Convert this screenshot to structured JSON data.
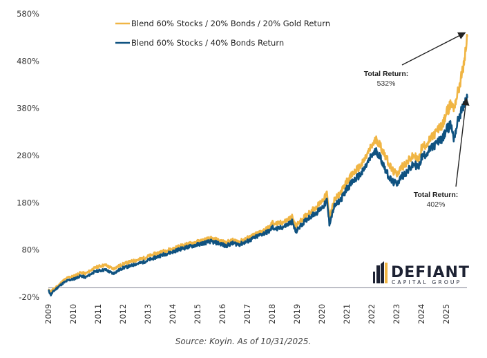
{
  "chart_data": {
    "type": "line",
    "title": "",
    "xlabel": "",
    "ylabel": "",
    "ylim": [
      -20,
      580
    ],
    "yticks": [
      "580%",
      "480%",
      "380%",
      "280%",
      "180%",
      "80%",
      "-20%"
    ],
    "ytick_values": [
      580,
      480,
      380,
      280,
      180,
      80,
      -20
    ],
    "xticks": [
      "2009",
      "2010",
      "2011",
      "2012",
      "2013",
      "2014",
      "2015",
      "2016",
      "2017",
      "2018",
      "2019",
      "2020",
      "2021",
      "2022",
      "2023",
      "2024",
      "2025"
    ],
    "xlim": [
      2009,
      2025.85
    ],
    "grid": false,
    "legend_position": "top-left",
    "series": [
      {
        "name": "Blend 60% Stocks / 20% Bonds / 20% Gold Return",
        "color": "#F0B544",
        "x": [
          2009.0,
          2009.1,
          2009.2,
          2009.4,
          2009.6,
          2009.8,
          2010.0,
          2010.3,
          2010.5,
          2010.8,
          2011.0,
          2011.3,
          2011.6,
          2011.8,
          2012.0,
          2012.3,
          2012.5,
          2012.8,
          2013.0,
          2013.3,
          2013.5,
          2013.8,
          2014.0,
          2014.3,
          2014.6,
          2014.9,
          2015.2,
          2015.5,
          2015.7,
          2016.0,
          2016.1,
          2016.4,
          2016.7,
          2017.0,
          2017.3,
          2017.6,
          2017.9,
          2018.0,
          2018.2,
          2018.5,
          2018.8,
          2018.95,
          2019.2,
          2019.5,
          2019.8,
          2020.1,
          2020.2,
          2020.3,
          2020.5,
          2020.8,
          2021.0,
          2021.3,
          2021.6,
          2021.9,
          2022.0,
          2022.2,
          2022.4,
          2022.6,
          2022.8,
          2023.0,
          2023.2,
          2023.5,
          2023.7,
          2023.9,
          2024.0,
          2024.3,
          2024.6,
          2024.9,
          2025.0,
          2025.2,
          2025.3,
          2025.5,
          2025.7,
          2025.85
        ],
        "values": [
          -5,
          -8,
          -3,
          5,
          15,
          22,
          24,
          32,
          30,
          40,
          45,
          48,
          40,
          45,
          50,
          55,
          58,
          62,
          66,
          72,
          75,
          80,
          82,
          88,
          92,
          96,
          100,
          104,
          102,
          98,
          95,
          100,
          98,
          105,
          112,
          120,
          128,
          138,
          135,
          140,
          150,
          130,
          145,
          160,
          172,
          190,
          200,
          150,
          185,
          205,
          225,
          245,
          260,
          290,
          300,
          315,
          295,
          275,
          250,
          240,
          255,
          270,
          280,
          270,
          295,
          310,
          330,
          350,
          370,
          390,
          380,
          420,
          470,
          532
        ]
      },
      {
        "name": "Blend 60% Stocks / 40% Bonds Return",
        "color": "#0F5280",
        "x": [
          2009.0,
          2009.1,
          2009.2,
          2009.4,
          2009.6,
          2009.8,
          2010.0,
          2010.3,
          2010.5,
          2010.8,
          2011.0,
          2011.3,
          2011.6,
          2011.8,
          2012.0,
          2012.3,
          2012.5,
          2012.8,
          2013.0,
          2013.3,
          2013.5,
          2013.8,
          2014.0,
          2014.3,
          2014.6,
          2014.9,
          2015.2,
          2015.5,
          2015.7,
          2016.0,
          2016.1,
          2016.4,
          2016.7,
          2017.0,
          2017.3,
          2017.6,
          2017.9,
          2018.0,
          2018.2,
          2018.5,
          2018.8,
          2018.95,
          2019.2,
          2019.5,
          2019.8,
          2020.1,
          2020.2,
          2020.3,
          2020.5,
          2020.8,
          2021.0,
          2021.3,
          2021.6,
          2021.9,
          2022.0,
          2022.2,
          2022.4,
          2022.6,
          2022.8,
          2023.0,
          2023.2,
          2023.5,
          2023.7,
          2023.9,
          2024.0,
          2024.3,
          2024.6,
          2024.9,
          2025.0,
          2025.2,
          2025.3,
          2025.5,
          2025.7,
          2025.85
        ],
        "values": [
          -5,
          -15,
          -8,
          2,
          10,
          16,
          18,
          25,
          22,
          32,
          36,
          38,
          30,
          36,
          42,
          46,
          50,
          54,
          58,
          64,
          68,
          73,
          76,
          82,
          86,
          90,
          94,
          98,
          96,
          92,
          88,
          94,
          92,
          98,
          106,
          114,
          120,
          128,
          124,
          130,
          140,
          118,
          135,
          150,
          160,
          175,
          185,
          135,
          172,
          190,
          210,
          228,
          242,
          270,
          280,
          290,
          270,
          245,
          225,
          220,
          235,
          250,
          262,
          255,
          275,
          290,
          305,
          320,
          335,
          345,
          315,
          360,
          385,
          402
        ]
      }
    ],
    "annotations": [
      {
        "title": "Total Return:",
        "value": "532%",
        "series": 0
      },
      {
        "title": "Total Return:",
        "value": "402%",
        "series": 1
      }
    ]
  },
  "logo": {
    "name": "DEFIANT",
    "subtitle": "CAPITAL GROUP",
    "dark_color": "#1D2233",
    "accent_color": "#F0B544"
  },
  "footer": {
    "source": "Source: Koyin. As of 10/31/2025."
  }
}
